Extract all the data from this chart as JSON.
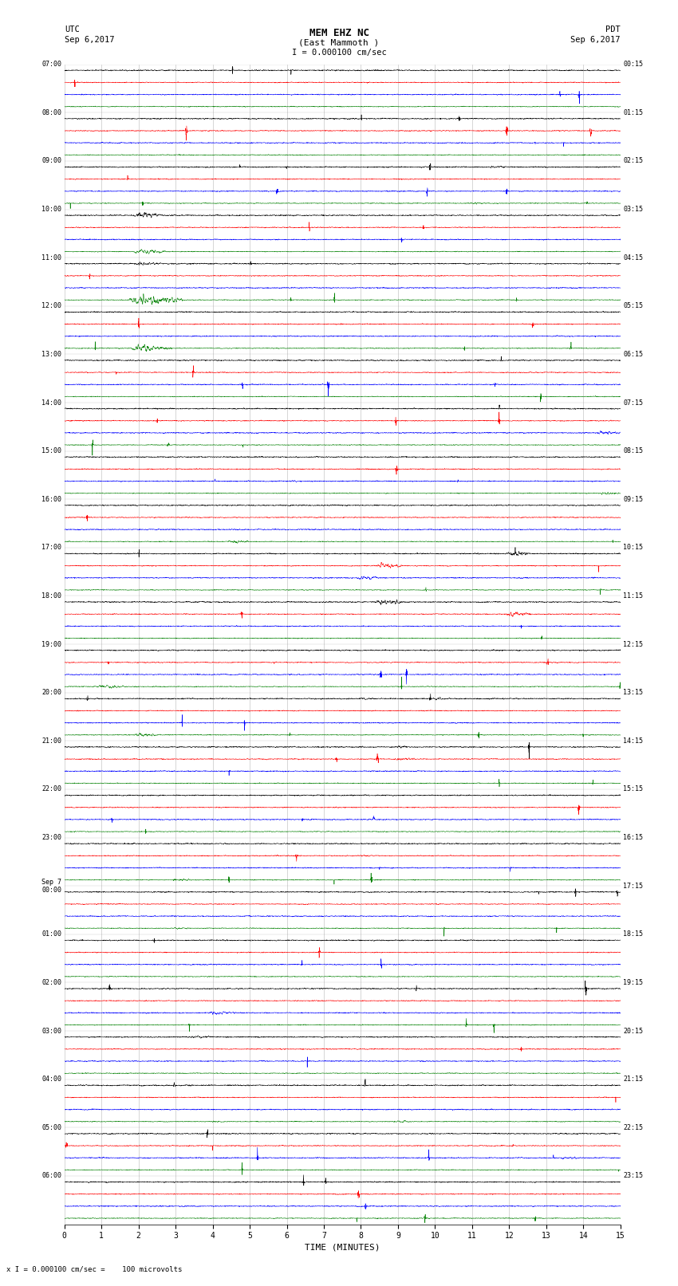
{
  "title_line1": "MEM EHZ NC",
  "title_line2": "(East Mammoth )",
  "scale_label": "I = 0.000100 cm/sec",
  "left_label_line1": "UTC",
  "left_label_line2": "Sep 6,2017",
  "right_label_line1": "PDT",
  "right_label_line2": "Sep 6,2017",
  "xlabel": "TIME (MINUTES)",
  "bottom_label": "x I = 0.000100 cm/sec =    100 microvolts",
  "left_times": [
    "07:00",
    "08:00",
    "09:00",
    "10:00",
    "11:00",
    "12:00",
    "13:00",
    "14:00",
    "15:00",
    "16:00",
    "17:00",
    "18:00",
    "19:00",
    "20:00",
    "21:00",
    "22:00",
    "23:00",
    "Sep 7\n00:00",
    "01:00",
    "02:00",
    "03:00",
    "04:00",
    "05:00",
    "06:00"
  ],
  "right_times": [
    "00:15",
    "01:15",
    "02:15",
    "03:15",
    "04:15",
    "05:15",
    "06:15",
    "07:15",
    "08:15",
    "09:15",
    "10:15",
    "11:15",
    "12:15",
    "13:15",
    "14:15",
    "15:15",
    "16:15",
    "17:15",
    "18:15",
    "19:15",
    "20:15",
    "21:15",
    "22:15",
    "23:15"
  ],
  "n_hours": 24,
  "traces_per_hour": 4,
  "row_colors": [
    "black",
    "red",
    "blue",
    "green"
  ],
  "x_ticks": [
    0,
    1,
    2,
    3,
    4,
    5,
    6,
    7,
    8,
    9,
    10,
    11,
    12,
    13,
    14,
    15
  ],
  "xlim": [
    0,
    15
  ],
  "bg_color": "white",
  "grid_color": "#999999",
  "noise_base": 0.12,
  "seed": 12345
}
